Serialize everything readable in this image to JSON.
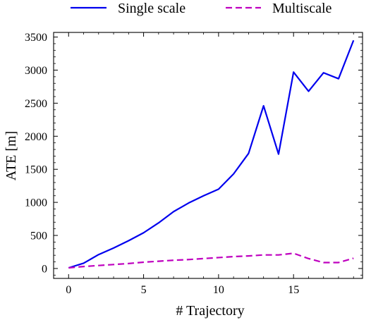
{
  "chart_data": {
    "type": "line",
    "title": "",
    "xlabel": "# Trajectory",
    "ylabel": "ATE [m]",
    "xlim": [
      -1,
      19.6
    ],
    "ylim": [
      -150,
      3570
    ],
    "xticks": [
      0,
      5,
      10,
      15
    ],
    "yticks": [
      0,
      500,
      1000,
      1500,
      2000,
      2500,
      3000,
      3500
    ],
    "grid": false,
    "legend_position": "top",
    "x": [
      0,
      1,
      2,
      3,
      4,
      5,
      6,
      7,
      8,
      9,
      10,
      11,
      12,
      13,
      14,
      15,
      16,
      17,
      18,
      19
    ],
    "series": [
      {
        "name": "Single scale",
        "color": "#0000ee",
        "style": "solid",
        "values": [
          10,
          80,
          210,
          310,
          420,
          540,
          690,
          860,
          990,
          1100,
          1200,
          1430,
          1740,
          2460,
          1730,
          2970,
          2680,
          2960,
          2870,
          3450
        ]
      },
      {
        "name": "Multiscale",
        "color": "#bf00bf",
        "style": "dashed",
        "values": [
          10,
          30,
          45,
          60,
          75,
          95,
          110,
          125,
          135,
          150,
          165,
          180,
          190,
          205,
          205,
          230,
          150,
          90,
          90,
          155
        ]
      }
    ]
  }
}
